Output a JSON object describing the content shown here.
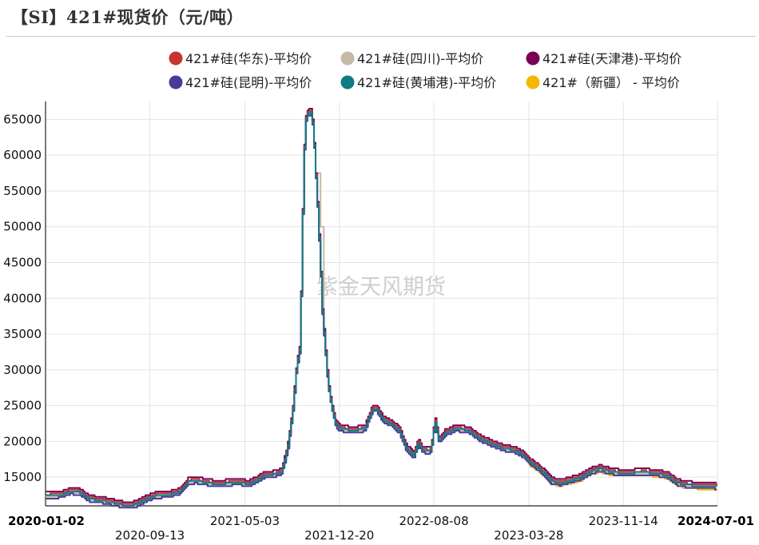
{
  "header": {
    "title": "【SI】421#现货价（元/吨）"
  },
  "watermark": "紫金天风期货",
  "chart_data": {
    "type": "line",
    "title": "【SI】421#现货价（元/吨）",
    "xlabel": "",
    "ylabel": "",
    "x_range": [
      "2020-01-02",
      "2024-07-01"
    ],
    "ylim": [
      11000,
      67500
    ],
    "y_ticks": [
      15000,
      20000,
      25000,
      30000,
      35000,
      40000,
      45000,
      50000,
      55000,
      60000,
      65000
    ],
    "x_ticks": [
      {
        "date": "2020-01-02",
        "label": "2020-01-02",
        "row": 0,
        "bold": true
      },
      {
        "date": "2020-09-13",
        "label": "2020-09-13",
        "row": 1,
        "bold": false
      },
      {
        "date": "2021-05-03",
        "label": "2021-05-03",
        "row": 0,
        "bold": false
      },
      {
        "date": "2021-12-20",
        "label": "2021-12-20",
        "row": 1,
        "bold": false
      },
      {
        "date": "2022-08-08",
        "label": "2022-08-08",
        "row": 0,
        "bold": false
      },
      {
        "date": "2023-03-28",
        "label": "2023-03-28",
        "row": 1,
        "bold": false
      },
      {
        "date": "2023-11-14",
        "label": "2023-11-14",
        "row": 0,
        "bold": false
      },
      {
        "date": "2024-07-01",
        "label": "2024-07-01",
        "row": 0,
        "bold": true
      }
    ],
    "grid": true,
    "legend_position": "top",
    "series": [
      {
        "name": "421#硅(华东)-平均价",
        "color": "#c23531",
        "offset": 200,
        "start": null,
        "overrides": []
      },
      {
        "name": "421#硅(四川)-平均价",
        "color": "#c8b9a6",
        "offset": -150,
        "start": null,
        "overrides": [
          [
            "2021-10-27",
            57500
          ],
          [
            "2021-11-01",
            57500
          ],
          [
            "2021-11-04",
            55000
          ],
          [
            "2021-11-07",
            50000
          ]
        ]
      },
      {
        "name": "421#硅(天津港)-平均价",
        "color": "#7b0055",
        "offset": 500,
        "start": null,
        "overrides": []
      },
      {
        "name": "421#硅(昆明)-平均价",
        "color": "#4a3a9a",
        "offset": -350,
        "start": null,
        "overrides": []
      },
      {
        "name": "421#硅(黄埔港)-平均价",
        "color": "#117a82",
        "offset": 0,
        "start": null,
        "overrides": []
      },
      {
        "name": "421#（新疆） - 平均价",
        "color": "#f5b800",
        "offset": -450,
        "start": "2023-03-28",
        "overrides": []
      }
    ],
    "base_points": [
      [
        "2020-01-02",
        12400
      ],
      [
        "2020-02-10",
        12500
      ],
      [
        "2020-03-01",
        13000
      ],
      [
        "2020-03-25",
        12900
      ],
      [
        "2020-04-15",
        12000
      ],
      [
        "2020-05-20",
        11700
      ],
      [
        "2020-06-20",
        11300
      ],
      [
        "2020-07-20",
        11000
      ],
      [
        "2020-08-10",
        11200
      ],
      [
        "2020-09-01",
        11900
      ],
      [
        "2020-09-25",
        12400
      ],
      [
        "2020-11-01",
        12600
      ],
      [
        "2020-11-25",
        13000
      ],
      [
        "2020-12-15",
        14400
      ],
      [
        "2021-01-05",
        14500
      ],
      [
        "2021-02-01",
        14200
      ],
      [
        "2021-03-01",
        14000
      ],
      [
        "2021-03-25",
        14200
      ],
      [
        "2021-04-20",
        14300
      ],
      [
        "2021-05-10",
        14000
      ],
      [
        "2021-06-01",
        14600
      ],
      [
        "2021-06-20",
        15300
      ],
      [
        "2021-07-15",
        15400
      ],
      [
        "2021-08-01",
        15800
      ],
      [
        "2021-08-15",
        19000
      ],
      [
        "2021-08-28",
        24500
      ],
      [
        "2021-09-06",
        30500
      ],
      [
        "2021-09-14",
        33000
      ],
      [
        "2021-09-18",
        43000
      ],
      [
        "2021-09-22",
        55000
      ],
      [
        "2021-09-26",
        63000
      ],
      [
        "2021-09-30",
        65800
      ],
      [
        "2021-10-12",
        66000
      ],
      [
        "2021-10-17",
        63500
      ],
      [
        "2021-10-22",
        58000
      ],
      [
        "2021-10-28",
        52000
      ],
      [
        "2021-11-02",
        46000
      ],
      [
        "2021-11-08",
        38000
      ],
      [
        "2021-11-15",
        33000
      ],
      [
        "2021-11-22",
        28000
      ],
      [
        "2021-11-30",
        25000
      ],
      [
        "2021-12-10",
        22500
      ],
      [
        "2021-12-20",
        21800
      ],
      [
        "2022-01-10",
        21600
      ],
      [
        "2022-02-01",
        21600
      ],
      [
        "2022-02-20",
        21800
      ],
      [
        "2022-03-10",
        24500
      ],
      [
        "2022-03-20",
        24600
      ],
      [
        "2022-04-05",
        23000
      ],
      [
        "2022-04-25",
        22500
      ],
      [
        "2022-05-15",
        21500
      ],
      [
        "2022-06-01",
        19000
      ],
      [
        "2022-06-20",
        18000
      ],
      [
        "2022-07-01",
        20000
      ],
      [
        "2022-07-10",
        18800
      ],
      [
        "2022-07-25",
        18600
      ],
      [
        "2022-08-01",
        18800
      ],
      [
        "2022-08-10",
        23000
      ],
      [
        "2022-08-20",
        20000
      ],
      [
        "2022-09-05",
        21200
      ],
      [
        "2022-10-01",
        21800
      ],
      [
        "2022-11-01",
        21500
      ],
      [
        "2022-12-01",
        20300
      ],
      [
        "2023-01-01",
        19500
      ],
      [
        "2023-01-25",
        19000
      ],
      [
        "2023-02-20",
        18800
      ],
      [
        "2023-03-15",
        18000
      ],
      [
        "2023-04-01",
        17000
      ],
      [
        "2023-04-20",
        16300
      ],
      [
        "2023-05-05",
        15500
      ],
      [
        "2023-05-20",
        14500
      ],
      [
        "2023-06-10",
        14200
      ],
      [
        "2023-07-10",
        14600
      ],
      [
        "2023-08-01",
        15000
      ],
      [
        "2023-08-25",
        15800
      ],
      [
        "2023-09-15",
        16200
      ],
      [
        "2023-10-10",
        15800
      ],
      [
        "2023-11-01",
        15600
      ],
      [
        "2023-12-01",
        15600
      ],
      [
        "2024-01-05",
        15700
      ],
      [
        "2024-02-05",
        15500
      ],
      [
        "2024-03-01",
        15200
      ],
      [
        "2024-03-25",
        14200
      ],
      [
        "2024-04-20",
        13900
      ],
      [
        "2024-05-20",
        13800
      ],
      [
        "2024-06-15",
        13800
      ],
      [
        "2024-07-01",
        13600
      ]
    ]
  }
}
